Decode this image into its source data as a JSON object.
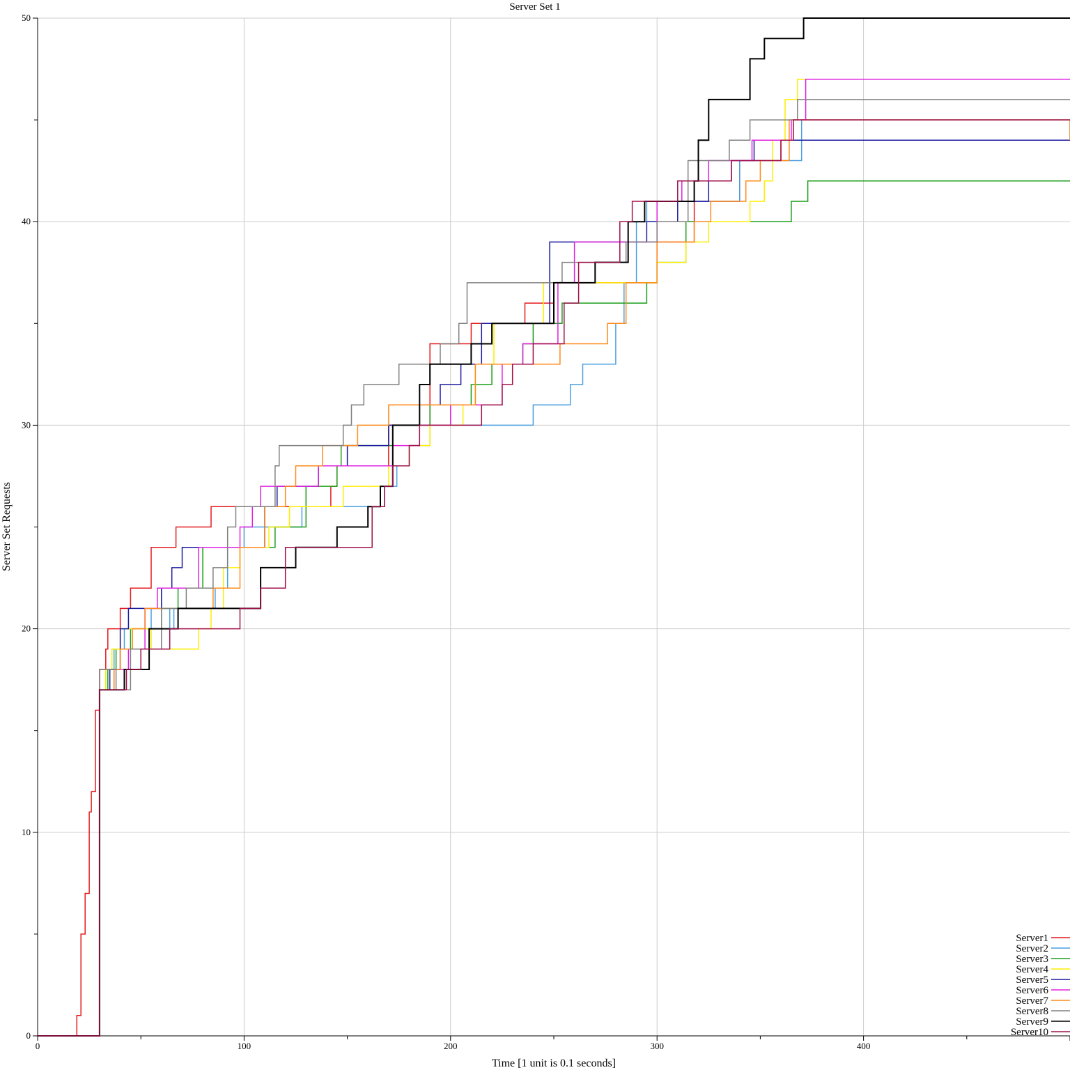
{
  "chart_data": {
    "type": "line",
    "title": "Server Set 1",
    "xlabel": "Time [1 unit is 0.1 seconds]",
    "ylabel": "Server Set Requests",
    "xlim": [
      0,
      500
    ],
    "ylim": [
      0,
      50
    ],
    "x_ticks": [
      0,
      100,
      200,
      300,
      400
    ],
    "y_ticks": [
      0,
      10,
      20,
      30,
      40,
      50
    ],
    "grid": true,
    "legend_position": "bottom-right",
    "step": true,
    "series": [
      {
        "name": "Server1",
        "color": "#e41a1c",
        "points": [
          [
            0,
            0
          ],
          [
            18,
            0
          ],
          [
            19,
            1
          ],
          [
            21,
            5
          ],
          [
            23,
            7
          ],
          [
            25,
            11
          ],
          [
            26,
            12
          ],
          [
            28,
            16
          ],
          [
            30,
            18
          ],
          [
            33,
            19
          ],
          [
            34,
            20
          ],
          [
            40,
            21
          ],
          [
            45,
            22
          ],
          [
            55,
            24
          ],
          [
            67,
            25
          ],
          [
            84,
            26
          ],
          [
            105,
            26
          ],
          [
            125,
            26
          ],
          [
            142,
            27
          ],
          [
            145,
            28
          ],
          [
            160,
            28
          ],
          [
            170,
            30
          ],
          [
            190,
            34
          ],
          [
            210,
            35
          ],
          [
            220,
            35
          ],
          [
            236,
            36
          ],
          [
            250,
            37
          ],
          [
            300,
            39
          ],
          [
            318,
            41
          ],
          [
            340,
            43
          ],
          [
            360,
            44
          ],
          [
            366,
            45
          ],
          [
            500,
            45
          ]
        ]
      },
      {
        "name": "Server2",
        "color": "#4a9fe0",
        "points": [
          [
            0,
            0
          ],
          [
            29,
            0
          ],
          [
            30,
            17
          ],
          [
            33,
            18
          ],
          [
            37,
            19
          ],
          [
            42,
            20
          ],
          [
            55,
            21
          ],
          [
            64,
            20
          ],
          [
            66,
            21
          ],
          [
            86,
            22
          ],
          [
            92,
            24
          ],
          [
            100,
            25
          ],
          [
            120,
            25
          ],
          [
            128,
            26
          ],
          [
            165,
            26
          ],
          [
            168,
            27
          ],
          [
            174,
            28
          ],
          [
            180,
            29
          ],
          [
            190,
            30
          ],
          [
            240,
            31
          ],
          [
            258,
            32
          ],
          [
            264,
            33
          ],
          [
            280,
            35
          ],
          [
            284,
            37
          ],
          [
            290,
            40
          ],
          [
            295,
            41
          ],
          [
            340,
            43
          ],
          [
            370,
            45
          ],
          [
            500,
            44
          ]
        ]
      },
      {
        "name": "Server3",
        "color": "#1a9e1a",
        "points": [
          [
            0,
            0
          ],
          [
            29,
            0
          ],
          [
            30,
            17
          ],
          [
            34,
            18
          ],
          [
            38,
            19
          ],
          [
            45,
            20
          ],
          [
            60,
            21
          ],
          [
            68,
            22
          ],
          [
            80,
            24
          ],
          [
            110,
            24
          ],
          [
            115,
            25
          ],
          [
            130,
            27
          ],
          [
            145,
            28
          ],
          [
            147,
            29
          ],
          [
            172,
            30
          ],
          [
            190,
            31
          ],
          [
            210,
            32
          ],
          [
            220,
            33
          ],
          [
            235,
            34
          ],
          [
            240,
            35
          ],
          [
            254,
            36
          ],
          [
            275,
            36
          ],
          [
            295,
            37
          ],
          [
            300,
            38
          ],
          [
            314,
            40
          ],
          [
            330,
            40
          ],
          [
            350,
            40
          ],
          [
            365,
            41
          ],
          [
            373,
            42
          ],
          [
            500,
            42
          ]
        ]
      },
      {
        "name": "Server4",
        "color": "#ffee00",
        "points": [
          [
            0,
            0
          ],
          [
            29,
            0
          ],
          [
            30,
            17
          ],
          [
            33,
            18
          ],
          [
            36,
            19
          ],
          [
            40,
            20
          ],
          [
            55,
            19
          ],
          [
            72,
            19
          ],
          [
            78,
            20
          ],
          [
            84,
            21
          ],
          [
            90,
            23
          ],
          [
            98,
            24
          ],
          [
            112,
            25
          ],
          [
            122,
            26
          ],
          [
            138,
            26
          ],
          [
            148,
            27
          ],
          [
            163,
            27
          ],
          [
            170,
            28
          ],
          [
            180,
            29
          ],
          [
            190,
            30
          ],
          [
            206,
            31
          ],
          [
            212,
            33
          ],
          [
            221,
            35
          ],
          [
            245,
            37
          ],
          [
            268,
            37
          ],
          [
            290,
            37
          ],
          [
            300,
            38
          ],
          [
            314,
            39
          ],
          [
            325,
            40
          ],
          [
            345,
            41
          ],
          [
            352,
            42
          ],
          [
            356,
            44
          ],
          [
            362,
            46
          ],
          [
            368,
            47
          ],
          [
            500,
            47
          ]
        ]
      },
      {
        "name": "Server5",
        "color": "#1a1aa0",
        "points": [
          [
            0,
            0
          ],
          [
            29,
            0
          ],
          [
            30,
            17
          ],
          [
            35,
            18
          ],
          [
            40,
            20
          ],
          [
            44,
            21
          ],
          [
            60,
            22
          ],
          [
            65,
            23
          ],
          [
            70,
            24
          ],
          [
            105,
            24
          ],
          [
            110,
            26
          ],
          [
            116,
            27
          ],
          [
            128,
            27
          ],
          [
            136,
            28
          ],
          [
            150,
            29
          ],
          [
            165,
            29
          ],
          [
            170,
            30
          ],
          [
            185,
            31
          ],
          [
            195,
            32
          ],
          [
            205,
            33
          ],
          [
            215,
            35
          ],
          [
            232,
            35
          ],
          [
            238,
            35
          ],
          [
            248,
            39
          ],
          [
            275,
            39
          ],
          [
            285,
            39
          ],
          [
            295,
            40
          ],
          [
            310,
            41
          ],
          [
            325,
            42
          ],
          [
            336,
            43
          ],
          [
            347,
            44
          ],
          [
            500,
            44
          ]
        ]
      },
      {
        "name": "Server6",
        "color": "#e020e0",
        "points": [
          [
            0,
            0
          ],
          [
            29,
            0
          ],
          [
            30,
            17
          ],
          [
            37,
            18
          ],
          [
            44,
            19
          ],
          [
            52,
            21
          ],
          [
            58,
            22
          ],
          [
            78,
            24
          ],
          [
            98,
            25
          ],
          [
            104,
            26
          ],
          [
            108,
            27
          ],
          [
            120,
            27
          ],
          [
            136,
            28
          ],
          [
            160,
            28
          ],
          [
            172,
            29
          ],
          [
            185,
            30
          ],
          [
            200,
            31
          ],
          [
            215,
            31
          ],
          [
            225,
            33
          ],
          [
            235,
            34
          ],
          [
            252,
            37
          ],
          [
            260,
            39
          ],
          [
            275,
            39
          ],
          [
            290,
            39
          ],
          [
            300,
            41
          ],
          [
            312,
            42
          ],
          [
            325,
            43
          ],
          [
            346,
            44
          ],
          [
            365,
            45
          ],
          [
            372,
            47
          ],
          [
            500,
            47
          ]
        ]
      },
      {
        "name": "Server7",
        "color": "#ff8a1a",
        "points": [
          [
            0,
            0
          ],
          [
            29,
            0
          ],
          [
            30,
            17
          ],
          [
            37,
            18
          ],
          [
            40,
            19
          ],
          [
            46,
            20
          ],
          [
            52,
            21
          ],
          [
            85,
            22
          ],
          [
            98,
            24
          ],
          [
            110,
            26
          ],
          [
            120,
            27
          ],
          [
            125,
            28
          ],
          [
            138,
            29
          ],
          [
            150,
            29
          ],
          [
            155,
            30
          ],
          [
            170,
            31
          ],
          [
            190,
            31
          ],
          [
            212,
            33
          ],
          [
            250,
            33
          ],
          [
            253,
            34
          ],
          [
            270,
            34
          ],
          [
            276,
            35
          ],
          [
            285,
            37
          ],
          [
            300,
            39
          ],
          [
            318,
            40
          ],
          [
            326,
            41
          ],
          [
            343,
            42
          ],
          [
            350,
            43
          ],
          [
            364,
            45
          ],
          [
            500,
            44
          ]
        ]
      },
      {
        "name": "Server8",
        "color": "#808080",
        "points": [
          [
            0,
            0
          ],
          [
            29,
            0
          ],
          [
            30,
            18
          ],
          [
            38,
            17
          ],
          [
            45,
            19
          ],
          [
            60,
            21
          ],
          [
            72,
            22
          ],
          [
            85,
            23
          ],
          [
            92,
            25
          ],
          [
            96,
            26
          ],
          [
            110,
            26
          ],
          [
            115,
            28
          ],
          [
            117,
            29
          ],
          [
            132,
            29
          ],
          [
            145,
            29
          ],
          [
            148,
            30
          ],
          [
            152,
            31
          ],
          [
            158,
            32
          ],
          [
            175,
            33
          ],
          [
            195,
            34
          ],
          [
            200,
            34
          ],
          [
            204,
            35
          ],
          [
            208,
            37
          ],
          [
            248,
            37
          ],
          [
            254,
            38
          ],
          [
            285,
            39
          ],
          [
            300,
            40
          ],
          [
            315,
            43
          ],
          [
            335,
            44
          ],
          [
            345,
            45
          ],
          [
            360,
            45
          ],
          [
            368,
            46
          ],
          [
            500,
            46
          ]
        ]
      },
      {
        "name": "Server9",
        "color": "#000000",
        "points": [
          [
            0,
            0
          ],
          [
            29,
            0
          ],
          [
            30,
            17
          ],
          [
            40,
            17
          ],
          [
            42,
            18
          ],
          [
            54,
            20
          ],
          [
            68,
            21
          ],
          [
            105,
            21
          ],
          [
            108,
            23
          ],
          [
            125,
            24
          ],
          [
            145,
            25
          ],
          [
            160,
            26
          ],
          [
            166,
            27
          ],
          [
            172,
            30
          ],
          [
            185,
            32
          ],
          [
            190,
            33
          ],
          [
            210,
            34
          ],
          [
            220,
            35
          ],
          [
            250,
            37
          ],
          [
            270,
            38
          ],
          [
            282,
            38
          ],
          [
            286,
            40
          ],
          [
            294,
            41
          ],
          [
            318,
            42
          ],
          [
            320,
            44
          ],
          [
            325,
            46
          ],
          [
            345,
            48
          ],
          [
            352,
            49
          ],
          [
            371,
            50
          ],
          [
            500,
            50
          ]
        ]
      },
      {
        "name": "Server10",
        "color": "#a0104a",
        "points": [
          [
            0,
            0
          ],
          [
            29,
            0
          ],
          [
            30,
            17
          ],
          [
            40,
            17
          ],
          [
            43,
            18
          ],
          [
            50,
            19
          ],
          [
            64,
            20
          ],
          [
            95,
            20
          ],
          [
            98,
            21
          ],
          [
            108,
            22
          ],
          [
            120,
            24
          ],
          [
            160,
            24
          ],
          [
            162,
            26
          ],
          [
            168,
            27
          ],
          [
            172,
            28
          ],
          [
            180,
            29
          ],
          [
            185,
            30
          ],
          [
            200,
            30
          ],
          [
            215,
            31
          ],
          [
            225,
            32
          ],
          [
            230,
            33
          ],
          [
            240,
            34
          ],
          [
            250,
            34
          ],
          [
            255,
            36
          ],
          [
            262,
            38
          ],
          [
            282,
            40
          ],
          [
            288,
            41
          ],
          [
            310,
            42
          ],
          [
            320,
            42
          ],
          [
            336,
            43
          ],
          [
            360,
            44
          ],
          [
            366,
            45
          ],
          [
            500,
            45
          ]
        ]
      }
    ]
  }
}
